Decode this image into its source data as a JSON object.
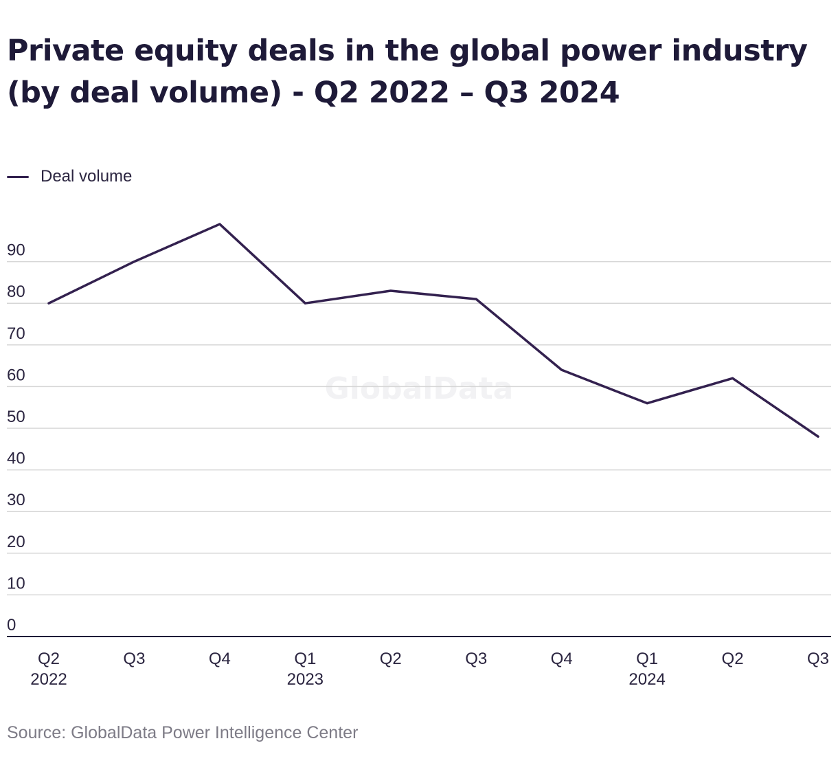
{
  "title": "Private equity deals in the global power industry (by deal volume) - Q2 2022 – Q3 2024",
  "source": "Source: GlobalData Power Intelligence Center",
  "watermark": "GlobalData",
  "colors": {
    "line": "#33214f",
    "grid": "#d6d6d6",
    "axis": "#1e1a38",
    "tick_text": "#2b2540",
    "watermark": "#f2f2f4"
  },
  "chart_data": {
    "type": "line",
    "title": "Private equity deals in the global power industry (by deal volume) - Q2 2022 – Q3 2024",
    "xlabel": "",
    "ylabel": "",
    "ylim": [
      0,
      90
    ],
    "yticks": [
      0,
      10,
      20,
      30,
      40,
      50,
      60,
      70,
      80,
      90
    ],
    "grid": true,
    "legend": "top-left",
    "categories": [
      "Q2 2022",
      "Q3",
      "Q4",
      "Q1 2023",
      "Q2",
      "Q3",
      "Q4",
      "Q1 2024",
      "Q2",
      "Q3"
    ],
    "category_labels": [
      [
        "Q2",
        "2022"
      ],
      [
        "Q3"
      ],
      [
        "Q4"
      ],
      [
        "Q1",
        "2023"
      ],
      [
        "Q2"
      ],
      [
        "Q3"
      ],
      [
        "Q4"
      ],
      [
        "Q1",
        "2024"
      ],
      [
        "Q2"
      ],
      [
        "Q3"
      ]
    ],
    "series": [
      {
        "name": "Deal volume",
        "values": [
          80,
          90,
          99,
          80,
          83,
          81,
          64,
          56,
          62,
          48
        ]
      }
    ]
  }
}
